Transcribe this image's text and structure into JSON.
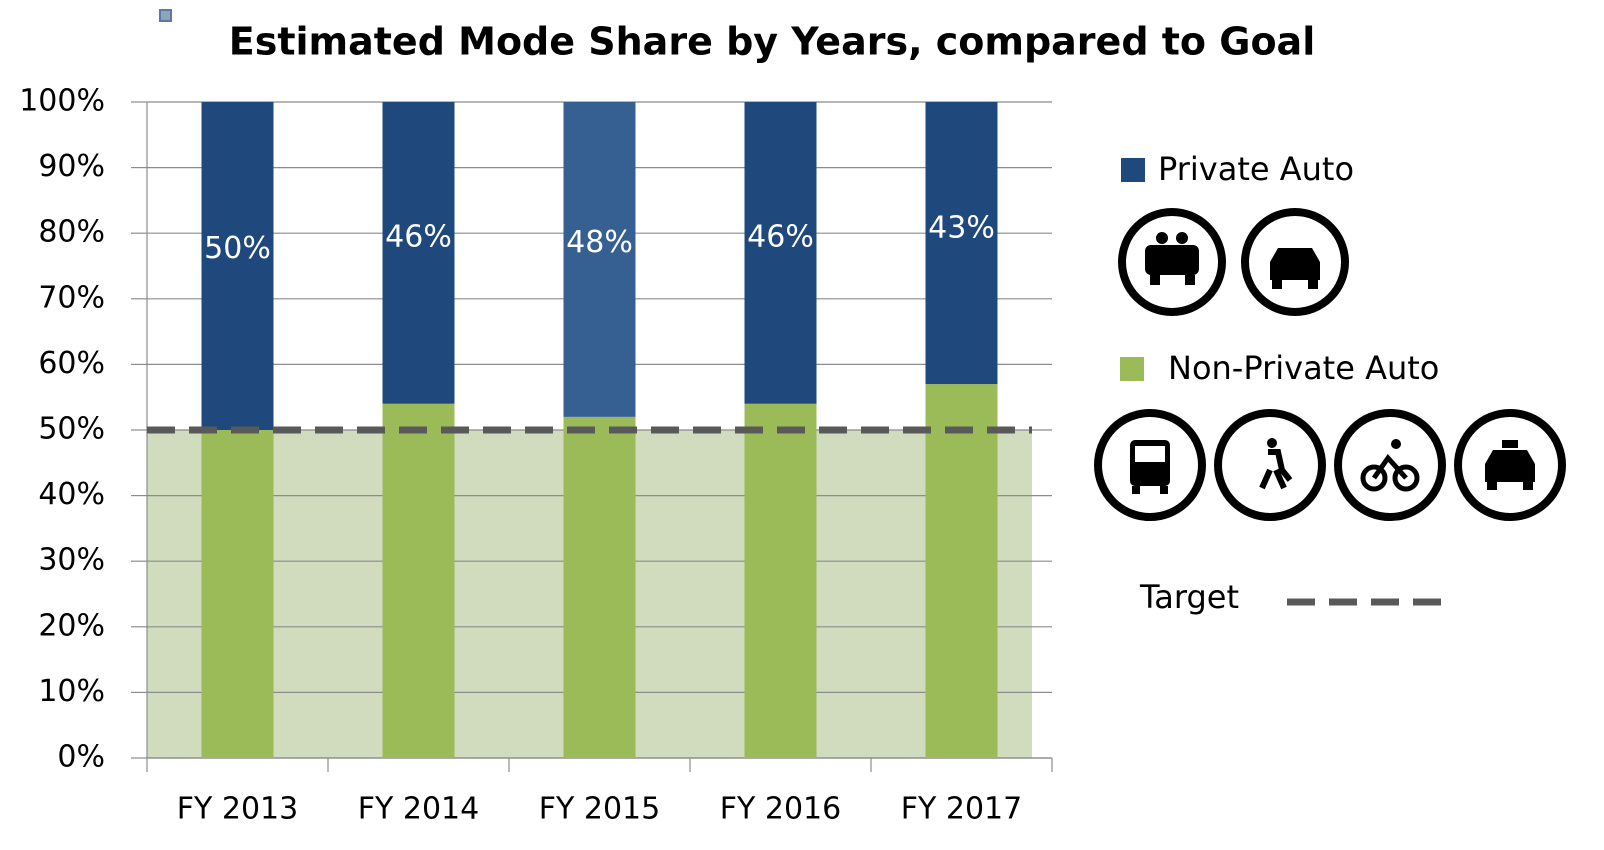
{
  "chart_data": {
    "type": "stacked_bar",
    "title": "Estimated Mode Share by Years, compared to Goal",
    "categories": [
      "FY 2013",
      "FY 2014",
      "FY 2015",
      "FY 2016",
      "FY 2017"
    ],
    "series": [
      {
        "name": "Non-Private Auto",
        "color": "#9bbb59",
        "values": [
          50,
          54,
          52,
          54,
          57
        ]
      },
      {
        "name": "Private Auto",
        "color": "#1f497d",
        "colors": [
          "#1f497d",
          "#1f497d",
          "#366092",
          "#1f497d",
          "#1f497d"
        ],
        "values": [
          50,
          46,
          48,
          46,
          43
        ],
        "value_labels": [
          "50%",
          "46%",
          "48%",
          "46%",
          "43%"
        ]
      }
    ],
    "target": {
      "name": "Target",
      "value": 50,
      "color": "#595959",
      "shade_color": "#d1dbbd"
    },
    "ylim": [
      0,
      100
    ],
    "yticks": [
      {
        "value": 0,
        "label": "0%"
      },
      {
        "value": 10,
        "label": "10%"
      },
      {
        "value": 20,
        "label": "20%"
      },
      {
        "value": 30,
        "label": "30%"
      },
      {
        "value": 40,
        "label": "40%"
      },
      {
        "value": 50,
        "label": "50%"
      },
      {
        "value": 60,
        "label": "60%"
      },
      {
        "value": 70,
        "label": "70%"
      },
      {
        "value": 80,
        "label": "80%"
      },
      {
        "value": 90,
        "label": "90%"
      },
      {
        "value": 100,
        "label": "100%"
      }
    ],
    "grid": true
  }
}
